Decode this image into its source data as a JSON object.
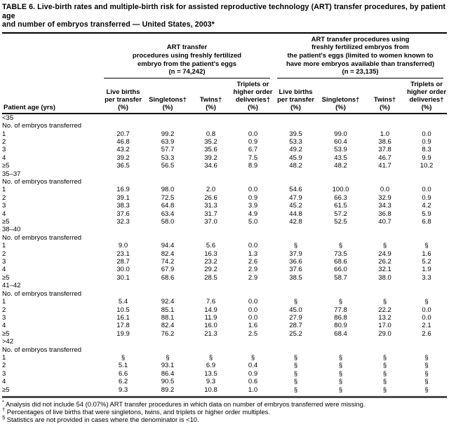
{
  "title": "TABLE 6. Live-birth rates and multiple-birth risk for assisted reproductive technology (ART) transfer procedures, by patient age\nand number of embryos transferred — United States, 2003*",
  "groups": [
    {
      "label": "ART transfer\nprocedures using freshly fertilized\nembryo from the patient's eggs\n(n = 74,242)"
    },
    {
      "label": "ART transfer procedures using\nfreshly fertilized embryos from\nthe patient's eggs (limited to women known to\nhave more embryos available than transferred)\n(n = 23,135)"
    }
  ],
  "columns": {
    "patient_age": "Patient age (yrs)",
    "headers": [
      "Live births\nper transfer\n(%)",
      "Singletons†\n(%)",
      "Twins†\n(%)",
      "Triplets or\nhigher order\ndeliveries†\n(%)"
    ]
  },
  "embryos_subheader": "No. of embryos transferred",
  "sections": [
    {
      "age": "<35",
      "rows": [
        {
          "label": "1",
          "values": [
            "20.7",
            "99.2",
            "0.8",
            "0.0",
            "39.5",
            "99.0",
            "1.0",
            "0.0"
          ]
        },
        {
          "label": "2",
          "values": [
            "46.8",
            "63.9",
            "35.2",
            "0.9",
            "53.3",
            "60.4",
            "38.6",
            "0.9"
          ]
        },
        {
          "label": "3",
          "values": [
            "43.2",
            "57.7",
            "35.6",
            "6.7",
            "49.2",
            "53.9",
            "37.8",
            "8.3"
          ]
        },
        {
          "label": "4",
          "values": [
            "39.2",
            "53.3",
            "39.2",
            "7.5",
            "45.9",
            "43.5",
            "46.7",
            "9.9"
          ]
        },
        {
          "label": "≥5",
          "values": [
            "36.5",
            "56.5",
            "34.6",
            "8.9",
            "48.2",
            "48.2",
            "41.7",
            "10.2"
          ]
        }
      ]
    },
    {
      "age": "35–37",
      "rows": [
        {
          "label": "1",
          "values": [
            "16.9",
            "98.0",
            "2.0",
            "0.0",
            "54.6",
            "100.0",
            "0.0",
            "0.0"
          ]
        },
        {
          "label": "2",
          "values": [
            "39.1",
            "72.5",
            "26.6",
            "0.9",
            "47.9",
            "66.3",
            "32.9",
            "0.9"
          ]
        },
        {
          "label": "3",
          "values": [
            "38.3",
            "64.8",
            "31.3",
            "3.9",
            "45.2",
            "61.5",
            "34.3",
            "4.2"
          ]
        },
        {
          "label": "4",
          "values": [
            "37.6",
            "63.4",
            "31.7",
            "4.9",
            "44.8",
            "57.2",
            "36.8",
            "5.9"
          ]
        },
        {
          "label": "≥5",
          "values": [
            "32.3",
            "58.0",
            "37.0",
            "5.0",
            "42.8",
            "52.5",
            "40.7",
            "6.8"
          ]
        }
      ]
    },
    {
      "age": "38–40",
      "rows": [
        {
          "label": "1",
          "values": [
            "9.0",
            "94.4",
            "5.6",
            "0.0",
            "§",
            "§",
            "§",
            "§"
          ]
        },
        {
          "label": "2",
          "values": [
            "23.1",
            "82.4",
            "16.3",
            "1.3",
            "37.9",
            "73.5",
            "24.9",
            "1.6"
          ]
        },
        {
          "label": "3",
          "values": [
            "28.7",
            "74.2",
            "23.2",
            "2.6",
            "36.6",
            "68.6",
            "26.2",
            "5.2"
          ]
        },
        {
          "label": "4",
          "values": [
            "30.0",
            "67.9",
            "29.2",
            "2.9",
            "37.6",
            "66.0",
            "32.1",
            "1.9"
          ]
        },
        {
          "label": "≥5",
          "values": [
            "30.1",
            "68.6",
            "28.5",
            "2.9",
            "38.5",
            "58.7",
            "38.0",
            "3.3"
          ]
        }
      ]
    },
    {
      "age": "41–42",
      "rows": [
        {
          "label": "1",
          "values": [
            "5.4",
            "92.4",
            "7.6",
            "0.0",
            "§",
            "§",
            "§",
            "§"
          ]
        },
        {
          "label": "2",
          "values": [
            "10.5",
            "85.1",
            "14.9",
            "0.0",
            "45.0",
            "77.8",
            "22.2",
            "0.0"
          ]
        },
        {
          "label": "3",
          "values": [
            "16.1",
            "88.1",
            "11.9",
            "0.0",
            "27.9",
            "86.8",
            "13.2",
            "0.0"
          ]
        },
        {
          "label": "4",
          "values": [
            "17.8",
            "82.4",
            "16.0",
            "1.6",
            "28.7",
            "80.9",
            "17.0",
            "2.1"
          ]
        },
        {
          "label": "≥5",
          "values": [
            "19.9",
            "76.2",
            "21.3",
            "2.5",
            "25.2",
            "68.4",
            "29.0",
            "2.6"
          ]
        }
      ]
    },
    {
      "age": ">42",
      "rows": [
        {
          "label": "1",
          "values": [
            "§",
            "§",
            "§",
            "§",
            "§",
            "§",
            "§",
            "§"
          ]
        },
        {
          "label": "2",
          "values": [
            "5.1",
            "93.1",
            "6.9",
            "0.4",
            "§",
            "§",
            "§",
            "§"
          ]
        },
        {
          "label": "3",
          "values": [
            "6.6",
            "86.4",
            "13.5",
            "0.9",
            "§",
            "§",
            "§",
            "§"
          ]
        },
        {
          "label": "4",
          "values": [
            "6.2",
            "90.5",
            "9.3",
            "0.6",
            "§",
            "§",
            "§",
            "§"
          ]
        },
        {
          "label": "≥5",
          "values": [
            "9.3",
            "89.2",
            "10.8",
            "1.0",
            "§",
            "§",
            "§",
            "§"
          ]
        }
      ]
    }
  ],
  "footnotes": [
    {
      "marker": "*",
      "text": "Analysis did not include 54 (0.07%) ART transfer procedures in which data on number of embryos transferred were missing."
    },
    {
      "marker": "†",
      "text": "Percentages of live births that were singletons, twins, and triplets or higher order multiples."
    },
    {
      "marker": "§",
      "text": "Statistics are not provided in cases where the denominator is <10."
    }
  ]
}
